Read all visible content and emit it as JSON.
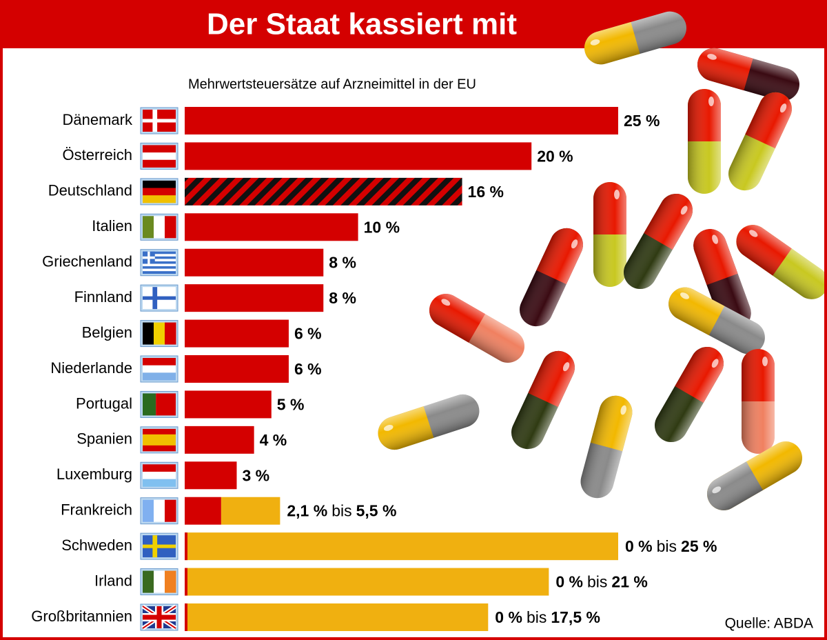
{
  "chart_data": {
    "type": "bar",
    "orientation": "horizontal",
    "title": "Der Staat kassiert mit",
    "subtitle": "Mehrwertsteuersätze auf Arzneimittel in der EU",
    "source": "Quelle: ABDA",
    "categories": [
      "Dänemark",
      "Österreich",
      "Deutschland",
      "Italien",
      "Griechenland",
      "Finnland",
      "Belgien",
      "Niederlande",
      "Portugal",
      "Spanien",
      "Luxemburg",
      "Frankreich",
      "Schweden",
      "Irland",
      "Großbritannien"
    ],
    "highlight": "Deutschland",
    "range_connector": "bis",
    "xlim": [
      0,
      25
    ],
    "series": [
      {
        "color": "#d40000",
        "values": [
          25,
          20,
          16,
          10,
          8,
          8,
          6,
          6,
          5,
          4,
          3,
          2.1,
          0,
          0,
          0
        ],
        "value_labels": [
          "25 %",
          "20 %",
          "16 %",
          "10 %",
          "8 %",
          "8 %",
          "6 %",
          "6 %",
          "5 %",
          "4 %",
          "3 %",
          "2,1 %",
          "0 %",
          "0 %",
          "0 %"
        ]
      },
      {
        "color": "#f0b010",
        "values": [
          null,
          null,
          null,
          null,
          null,
          null,
          null,
          null,
          null,
          null,
          null,
          5.5,
          25,
          21,
          17.5
        ],
        "value_labels": [
          null,
          null,
          null,
          null,
          null,
          null,
          null,
          null,
          null,
          null,
          null,
          "5,5 %",
          "25 %",
          "21 %",
          "17,5 %"
        ]
      }
    ]
  }
}
